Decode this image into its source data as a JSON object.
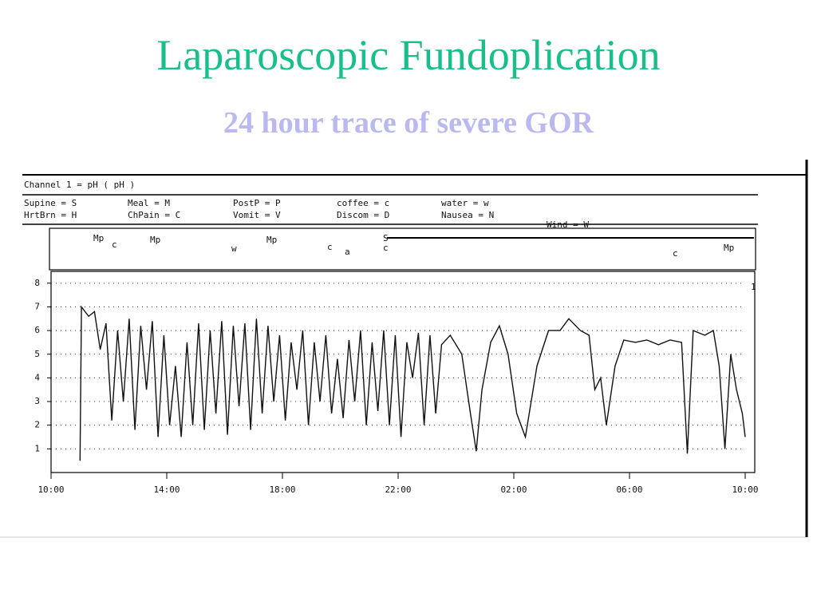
{
  "title": "Laparoscopic Fundoplication",
  "subtitle": "24 hour trace of severe GOR",
  "channel": "Channel 1 = pH ( pH )",
  "legend": [
    "Supine = S",
    "Meal = M",
    "PostP = P",
    "coffee = c",
    "water = w",
    "HrtBrn = H",
    "ChPain = C",
    "Vomit = V",
    "Discom = D",
    "Nausea = N",
    "Wind = W"
  ],
  "events": [
    "Mp",
    "c",
    "Mp",
    "w",
    "Mp",
    "c",
    "a",
    "S",
    "c",
    "c",
    "Mp"
  ],
  "channel_marker": "1",
  "chart_data": {
    "type": "line",
    "color": "#111",
    "x": [
      11.0,
      11.05,
      11.3,
      11.5,
      11.7,
      11.9,
      12.1,
      12.3,
      12.5,
      12.7,
      12.9,
      13.1,
      13.3,
      13.5,
      13.7,
      13.9,
      14.1,
      14.3,
      14.5,
      14.7,
      14.9,
      15.1,
      15.3,
      15.5,
      15.7,
      15.9,
      16.1,
      16.3,
      16.5,
      16.7,
      16.9,
      17.1,
      17.3,
      17.5,
      17.7,
      17.9,
      18.1,
      18.3,
      18.5,
      18.7,
      18.9,
      19.1,
      19.3,
      19.5,
      19.7,
      19.9,
      20.1,
      20.3,
      20.5,
      20.7,
      20.9,
      21.1,
      21.3,
      21.5,
      21.7,
      21.9,
      22.1,
      22.3,
      22.5,
      22.7,
      22.9,
      23.1,
      23.3,
      23.5,
      23.8,
      24.2,
      24.5,
      24.7,
      24.9,
      25.2,
      25.5,
      25.8,
      26.1,
      26.4,
      26.8,
      27.2,
      27.6,
      27.9,
      28.3,
      28.6,
      28.8,
      29.0,
      29.2,
      29.5,
      29.8,
      30.2,
      30.6,
      31.0,
      31.4,
      31.8,
      32.0,
      32.2,
      32.6,
      32.9,
      33.1,
      33.3,
      33.5,
      33.7,
      33.9,
      34.0
    ],
    "values": [
      0.5,
      7.0,
      6.6,
      6.8,
      5.2,
      6.3,
      2.2,
      6.0,
      3.0,
      6.5,
      1.8,
      6.2,
      3.5,
      6.4,
      1.5,
      5.8,
      2.0,
      4.5,
      1.5,
      5.5,
      2.0,
      6.3,
      1.8,
      6.0,
      2.5,
      6.4,
      1.6,
      6.2,
      2.8,
      6.3,
      1.8,
      6.5,
      2.5,
      6.2,
      3.0,
      5.8,
      2.2,
      5.5,
      3.5,
      6.0,
      2.0,
      5.5,
      3.0,
      5.8,
      2.5,
      4.8,
      2.3,
      5.6,
      3.0,
      6.0,
      2.0,
      5.5,
      2.6,
      6.0,
      2.0,
      5.8,
      1.5,
      5.5,
      4.0,
      5.9,
      2.0,
      5.8,
      2.5,
      5.4,
      5.8,
      5.0,
      2.5,
      0.9,
      3.5,
      5.5,
      6.2,
      5.0,
      2.5,
      1.5,
      4.5,
      6.0,
      6.0,
      6.5,
      6.0,
      5.8,
      3.5,
      4.0,
      2.0,
      4.5,
      5.6,
      5.5,
      5.6,
      5.4,
      5.6,
      5.5,
      0.8,
      6.0,
      5.8,
      6.0,
      4.5,
      1.0,
      5.0,
      3.5,
      2.5,
      1.5
    ],
    "xlim": [
      10,
      34
    ],
    "xticks": [
      {
        "value": 10,
        "label": "10:00"
      },
      {
        "value": 14,
        "label": "14:00"
      },
      {
        "value": 18,
        "label": "18:00"
      },
      {
        "value": 22,
        "label": "22:00"
      },
      {
        "value": 26,
        "label": "02:00"
      },
      {
        "value": 30,
        "label": "06:00"
      },
      {
        "value": 34,
        "label": "10:00"
      }
    ],
    "ylim": [
      0,
      8.5
    ],
    "yticks": [
      1,
      2,
      3,
      4,
      5,
      6,
      7,
      8
    ],
    "grid": true
  }
}
